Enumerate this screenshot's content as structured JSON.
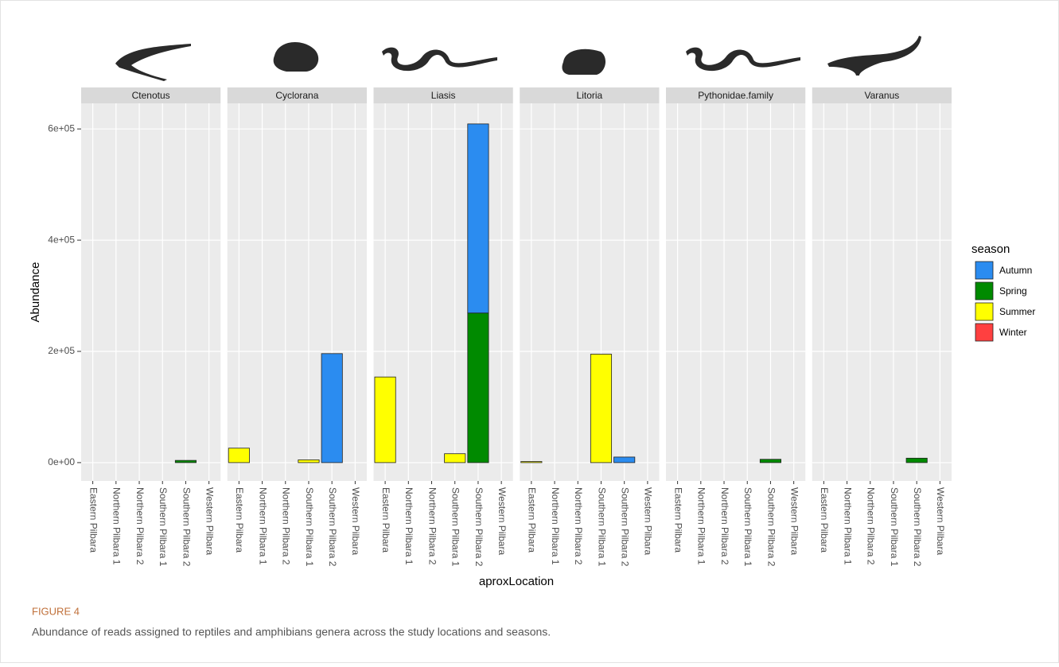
{
  "chart_data": {
    "type": "bar",
    "stacked": true,
    "ylabel": "Abundance",
    "xlabel": "aproxLocation",
    "legend_title": "season",
    "legend_position": "right",
    "grid": true,
    "ylim": [
      -33000,
      646000
    ],
    "yticks": [
      {
        "value": 0,
        "label": "0e+00"
      },
      {
        "value": 200000,
        "label": "2e+05"
      },
      {
        "value": 400000,
        "label": "4e+05"
      },
      {
        "value": 600000,
        "label": "6e+05"
      }
    ],
    "categories": [
      "Eastern Pilbara",
      "Northern Pilbara 1",
      "Northern Pilbara 2",
      "Southern Pilbara 1",
      "Southern Pilbara 2",
      "Western Pilbara"
    ],
    "series": [
      {
        "name": "Autumn",
        "color": "#2b8cf0"
      },
      {
        "name": "Spring",
        "color": "#008a00"
      },
      {
        "name": "Summer",
        "color": "#ffff00"
      },
      {
        "name": "Winter",
        "color": "#ff4040"
      }
    ],
    "facets": [
      {
        "title": "Ctenotus",
        "values": [
          [
            0,
            0,
            0,
            0,
            0,
            0
          ],
          [
            0,
            0,
            0,
            0,
            4000,
            0
          ],
          [
            0,
            0,
            0,
            0,
            0,
            0
          ],
          [
            0,
            0,
            0,
            0,
            0,
            0
          ]
        ]
      },
      {
        "title": "Cyclorana",
        "values": [
          [
            0,
            0,
            0,
            0,
            196000,
            0
          ],
          [
            0,
            0,
            0,
            0,
            0,
            0
          ],
          [
            26000,
            0,
            0,
            5000,
            0,
            0
          ],
          [
            0,
            0,
            0,
            0,
            0,
            0
          ]
        ]
      },
      {
        "title": "Liasis",
        "values": [
          [
            0,
            0,
            0,
            0,
            340000,
            0
          ],
          [
            0,
            0,
            0,
            0,
            269000,
            0
          ],
          [
            154000,
            0,
            0,
            16000,
            0,
            0
          ],
          [
            0,
            0,
            0,
            0,
            0,
            0
          ]
        ]
      },
      {
        "title": "Litoria",
        "values": [
          [
            0,
            0,
            0,
            0,
            10000,
            0
          ],
          [
            0,
            0,
            0,
            0,
            0,
            0
          ],
          [
            2000,
            0,
            0,
            195000,
            0,
            0
          ],
          [
            0,
            0,
            0,
            0,
            0,
            0
          ]
        ]
      },
      {
        "title": "Pythonidae.family",
        "values": [
          [
            0,
            0,
            0,
            0,
            0,
            0
          ],
          [
            0,
            0,
            0,
            0,
            6000,
            0
          ],
          [
            0,
            0,
            0,
            0,
            0,
            0
          ],
          [
            0,
            0,
            0,
            0,
            0,
            0
          ]
        ]
      },
      {
        "title": "Varanus",
        "values": [
          [
            0,
            0,
            0,
            0,
            0,
            0
          ],
          [
            0,
            0,
            0,
            0,
            8000,
            0
          ],
          [
            0,
            0,
            0,
            0,
            0,
            0
          ],
          [
            0,
            0,
            0,
            0,
            0,
            0
          ]
        ]
      }
    ]
  },
  "figure": {
    "label": "FIGURE 4",
    "caption": "Abundance of reads assigned to reptiles and amphibians genera across the study locations and seasons."
  }
}
